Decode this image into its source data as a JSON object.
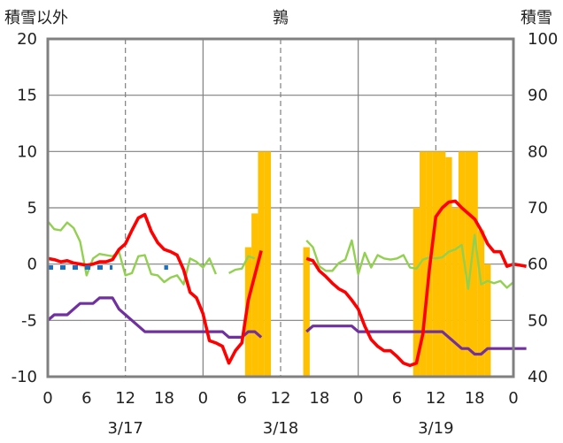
{
  "chart_data": {
    "type": "line+bar",
    "title": "鶉",
    "left_axis_title": "積雪以外",
    "right_axis_title": "積雪",
    "y_left": {
      "min": -10,
      "max": 20,
      "step": 5,
      "ticks": [
        20,
        15,
        10,
        5,
        0,
        -5,
        -10
      ]
    },
    "y_right": {
      "min": 40,
      "max": 100,
      "step": 10,
      "ticks": [
        100,
        90,
        80,
        70,
        60,
        50,
        40
      ]
    },
    "x": {
      "min": 0,
      "max": 72,
      "tick_step": 3,
      "tick_labels": [
        "0",
        "6",
        "12",
        "18",
        "0",
        "6",
        "12",
        "18",
        "0",
        "6",
        "12",
        "18",
        "0"
      ]
    },
    "day_labels": [
      {
        "label": "3/17",
        "hour": 12
      },
      {
        "label": "3/18",
        "hour": 36
      },
      {
        "label": "3/19",
        "hour": 60
      }
    ],
    "colors": {
      "temperature": "#ff0000",
      "wind": "#92d050",
      "humidity": "#7030a0",
      "precipitation": "#1f6fbf",
      "snow_depth": "#ffc000",
      "frame": "#808080",
      "grid": "#808080"
    },
    "series": [
      {
        "name": "snow_depth",
        "axis": "right",
        "style": "bar",
        "hours": [
          31,
          32,
          33,
          34,
          40,
          57,
          58,
          59,
          60,
          61,
          62,
          63,
          64,
          65,
          66,
          67,
          68
        ],
        "values": [
          63,
          69,
          80,
          80,
          63,
          70,
          80,
          80,
          80,
          80,
          79,
          70,
          80,
          80,
          80,
          66,
          60
        ]
      },
      {
        "name": "wind",
        "axis": "left",
        "style": "line",
        "segments": [
          [
            [
              0,
              3.8
            ],
            [
              1,
              3.1
            ],
            [
              2,
              3.0
            ],
            [
              3,
              3.7
            ],
            [
              4,
              3.2
            ],
            [
              5,
              2.0
            ],
            [
              6,
              -1.0
            ],
            [
              7,
              0.5
            ],
            [
              8,
              0.9
            ],
            [
              9,
              0.8
            ],
            [
              10,
              0.7
            ],
            [
              11,
              1.1
            ],
            [
              12,
              -1.0
            ],
            [
              13,
              -0.8
            ],
            [
              14,
              0.7
            ],
            [
              15,
              0.8
            ],
            [
              16,
              -0.9
            ],
            [
              17,
              -1.0
            ],
            [
              18,
              -1.6
            ],
            [
              19,
              -1.2
            ],
            [
              20,
              -1.0
            ],
            [
              21,
              -1.8
            ],
            [
              22,
              0.5
            ],
            [
              23,
              0.2
            ],
            [
              24,
              -0.3
            ],
            [
              25,
              0.5
            ],
            [
              26,
              -0.9
            ]
          ],
          [
            [
              28,
              -0.8
            ],
            [
              29,
              -0.5
            ],
            [
              30,
              -0.4
            ],
            [
              31,
              0.7
            ],
            [
              32,
              0.5
            ]
          ],
          [
            [
              40,
              2.1
            ],
            [
              41,
              1.5
            ],
            [
              42,
              -0.2
            ],
            [
              43,
              -0.6
            ],
            [
              44,
              -0.6
            ],
            [
              45,
              0.1
            ],
            [
              46,
              0.4
            ],
            [
              47,
              2.1
            ],
            [
              48,
              -0.9
            ],
            [
              49,
              1.0
            ],
            [
              50,
              -0.3
            ],
            [
              51,
              0.8
            ],
            [
              52,
              0.5
            ],
            [
              53,
              0.4
            ],
            [
              54,
              0.5
            ],
            [
              55,
              0.8
            ],
            [
              56,
              -0.3
            ],
            [
              57,
              -0.4
            ],
            [
              58,
              0.4
            ],
            [
              59,
              0.6
            ],
            [
              60,
              0.5
            ],
            [
              61,
              0.6
            ],
            [
              62,
              1.1
            ],
            [
              63,
              1.3
            ],
            [
              64,
              1.7
            ],
            [
              65,
              -2.2
            ],
            [
              66,
              2.6
            ],
            [
              67,
              -1.8
            ],
            [
              68,
              -1.5
            ],
            [
              69,
              -1.7
            ],
            [
              70,
              -1.5
            ],
            [
              71,
              -2.1
            ],
            [
              72,
              -1.6
            ]
          ]
        ]
      },
      {
        "name": "temperature",
        "axis": "left",
        "style": "line",
        "segments": [
          [
            [
              0,
              0.5
            ],
            [
              1,
              0.4
            ],
            [
              2,
              0.2
            ],
            [
              3,
              0.3
            ],
            [
              4,
              0.1
            ],
            [
              5,
              0.0
            ],
            [
              6,
              -0.1
            ],
            [
              7,
              0.0
            ],
            [
              8,
              0.2
            ],
            [
              9,
              0.2
            ],
            [
              10,
              0.4
            ],
            [
              11,
              1.3
            ],
            [
              12,
              1.8
            ],
            [
              13,
              3.0
            ],
            [
              14,
              4.1
            ],
            [
              15,
              4.4
            ],
            [
              16,
              2.9
            ],
            [
              17,
              1.9
            ],
            [
              18,
              1.3
            ],
            [
              19,
              1.1
            ],
            [
              20,
              0.8
            ],
            [
              21,
              -0.5
            ],
            [
              22,
              -2.5
            ],
            [
              23,
              -3.0
            ],
            [
              24,
              -4.4
            ],
            [
              25,
              -6.8
            ],
            [
              26,
              -7.0
            ],
            [
              27,
              -7.3
            ],
            [
              28,
              -8.8
            ],
            [
              29,
              -7.7
            ],
            [
              30,
              -7.0
            ],
            [
              31,
              -3.2
            ],
            [
              32,
              -1.0
            ],
            [
              33,
              1.2
            ]
          ],
          [
            [
              40,
              0.5
            ],
            [
              41,
              0.3
            ],
            [
              42,
              -0.6
            ],
            [
              43,
              -1.1
            ],
            [
              44,
              -1.7
            ],
            [
              45,
              -2.2
            ],
            [
              46,
              -2.5
            ],
            [
              47,
              -3.2
            ],
            [
              48,
              -4.0
            ],
            [
              49,
              -5.5
            ],
            [
              50,
              -6.7
            ],
            [
              51,
              -7.3
            ],
            [
              52,
              -7.7
            ],
            [
              53,
              -7.7
            ],
            [
              54,
              -8.2
            ],
            [
              55,
              -8.8
            ],
            [
              56,
              -9.0
            ],
            [
              57,
              -8.8
            ],
            [
              58,
              -6.2
            ],
            [
              59,
              -0.5
            ],
            [
              60,
              4.2
            ],
            [
              61,
              5.0
            ],
            [
              62,
              5.5
            ],
            [
              63,
              5.6
            ],
            [
              64,
              5.0
            ],
            [
              65,
              4.5
            ],
            [
              66,
              4.0
            ],
            [
              67,
              3.0
            ],
            [
              68,
              1.8
            ],
            [
              69,
              1.1
            ],
            [
              70,
              1.1
            ],
            [
              71,
              -0.2
            ],
            [
              72,
              0.0
            ],
            [
              73,
              -0.1
            ],
            [
              74,
              -0.2
            ]
          ]
        ]
      },
      {
        "name": "humidity",
        "axis": "left",
        "style": "line",
        "segments": [
          [
            [
              0,
              -5.0
            ],
            [
              1,
              -4.5
            ],
            [
              2,
              -4.5
            ],
            [
              3,
              -4.5
            ],
            [
              4,
              -4.0
            ],
            [
              5,
              -3.5
            ],
            [
              6,
              -3.5
            ],
            [
              7,
              -3.5
            ],
            [
              8,
              -3.0
            ],
            [
              9,
              -3.0
            ],
            [
              10,
              -3.0
            ],
            [
              11,
              -4.0
            ],
            [
              12,
              -4.5
            ],
            [
              13,
              -5.0
            ],
            [
              14,
              -5.5
            ],
            [
              15,
              -6.0
            ],
            [
              16,
              -6.0
            ],
            [
              17,
              -6.0
            ],
            [
              18,
              -6.0
            ],
            [
              19,
              -6.0
            ],
            [
              20,
              -6.0
            ],
            [
              21,
              -6.0
            ],
            [
              22,
              -6.0
            ],
            [
              23,
              -6.0
            ],
            [
              24,
              -6.0
            ],
            [
              25,
              -6.0
            ],
            [
              26,
              -6.0
            ],
            [
              27,
              -6.0
            ],
            [
              28,
              -6.5
            ],
            [
              29,
              -6.5
            ],
            [
              30,
              -6.5
            ],
            [
              31,
              -6.0
            ],
            [
              32,
              -6.0
            ],
            [
              33,
              -6.5
            ]
          ],
          [
            [
              40,
              -6.0
            ],
            [
              41,
              -5.5
            ],
            [
              42,
              -5.5
            ],
            [
              43,
              -5.5
            ],
            [
              44,
              -5.5
            ],
            [
              45,
              -5.5
            ],
            [
              46,
              -5.5
            ],
            [
              47,
              -5.5
            ],
            [
              48,
              -6.0
            ],
            [
              49,
              -6.0
            ],
            [
              50,
              -6.0
            ],
            [
              51,
              -6.0
            ],
            [
              52,
              -6.0
            ],
            [
              53,
              -6.0
            ],
            [
              54,
              -6.0
            ],
            [
              55,
              -6.0
            ],
            [
              56,
              -6.0
            ],
            [
              57,
              -6.0
            ],
            [
              58,
              -6.0
            ],
            [
              59,
              -6.0
            ],
            [
              60,
              -6.0
            ],
            [
              61,
              -6.0
            ],
            [
              62,
              -6.5
            ],
            [
              63,
              -7.0
            ],
            [
              64,
              -7.5
            ],
            [
              65,
              -7.5
            ],
            [
              66,
              -8.0
            ],
            [
              67,
              -8.0
            ],
            [
              68,
              -7.5
            ],
            [
              69,
              -7.5
            ],
            [
              70,
              -7.5
            ],
            [
              71,
              -7.5
            ],
            [
              72,
              -7.5
            ],
            [
              73,
              -7.5
            ],
            [
              74,
              -7.5
            ]
          ]
        ]
      },
      {
        "name": "precipitation",
        "axis": "left",
        "style": "dashed",
        "segments": [
          [
            [
              0,
              -0.3
            ],
            [
              10,
              -0.3
            ]
          ],
          [
            [
              18,
              -0.3
            ],
            [
              18.6,
              -0.3
            ]
          ]
        ]
      }
    ]
  }
}
